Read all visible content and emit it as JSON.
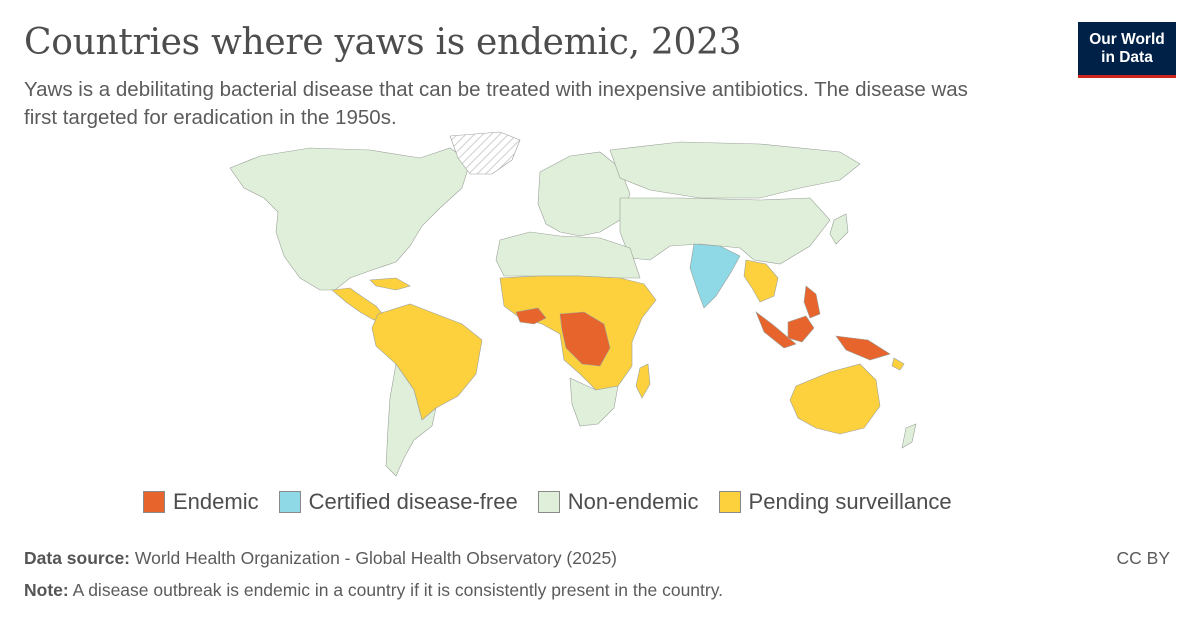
{
  "header": {
    "title": "Countries where yaws is endemic, 2023",
    "subtitle": "Yaws is a debilitating bacterial disease that can be treated with inexpensive antibiotics. The disease was first targeted for eradication in the 1950s."
  },
  "logo": {
    "line1": "Our World",
    "line2": "in Data"
  },
  "legend": [
    {
      "label": "Endemic",
      "color": "#e8642d"
    },
    {
      "label": "Certified disease-free",
      "color": "#8fd8e6"
    },
    {
      "label": "Non-endemic",
      "color": "#e0efd9"
    },
    {
      "label": "Pending surveillance",
      "color": "#fdd13d"
    }
  ],
  "footer": {
    "source_label": "Data source:",
    "source_text": "World Health Organization - Global Health Observatory (2025)",
    "note_label": "Note:",
    "note_text": "A disease outbreak is endemic in a country if it is consistently present in the country.",
    "license": "CC BY"
  },
  "colors": {
    "endemic": "#e8642d",
    "free": "#8fd8e6",
    "non_endemic": "#e0efd9",
    "pending": "#fdd13d",
    "no_data_hatch": "#cccccc"
  }
}
